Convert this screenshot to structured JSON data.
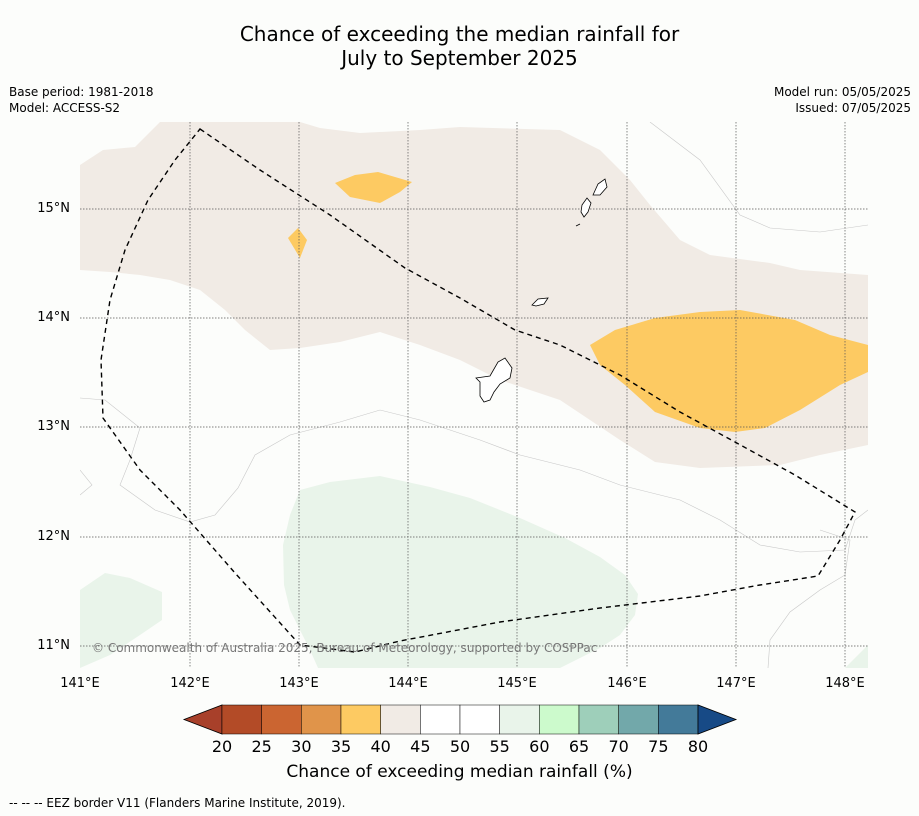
{
  "title_line1": "Chance of exceeding the median rainfall for",
  "title_line2": "July to September 2025",
  "meta": {
    "base_period": "Base period: 1981-2018",
    "model": "Model: ACCESS-S2",
    "model_run": "Model run: 05/05/2025",
    "issued": "Issued: 07/05/2025"
  },
  "map": {
    "lat_labels": [
      "15°N",
      "14°N",
      "13°N",
      "12°N",
      "11°N"
    ],
    "lon_labels": [
      "141°E",
      "142°E",
      "143°E",
      "144°E",
      "145°E",
      "146°E",
      "147°E",
      "148°E"
    ],
    "copyright": "© Commonwealth of Australia 2025, Bureau of Meteorology, supported by COSPPac",
    "colors": {
      "cat_40_45": "#f1ebe5",
      "cat_35_40": "#fdca62",
      "cat_55_60": "#e9f4ea",
      "land": "#ffffff",
      "eez": "#000000"
    }
  },
  "colorbar": {
    "ticks": [
      "20",
      "25",
      "30",
      "35",
      "40",
      "45",
      "50",
      "55",
      "60",
      "65",
      "70",
      "75",
      "80"
    ],
    "colors": [
      "#a8402a",
      "#b34b27",
      "#cb6531",
      "#e0944a",
      "#fdca62",
      "#f1ebe5",
      "#ffffff",
      "#ffffff",
      "#e9f4ea",
      "#ccfacc",
      "#9ecfba",
      "#72a8aa",
      "#437a99",
      "#174a86"
    ],
    "label": "Chance of exceeding median rainfall (%)"
  },
  "footer": "--  --  -- EEZ border V11 (Flanders Marine Institute, 2019)."
}
